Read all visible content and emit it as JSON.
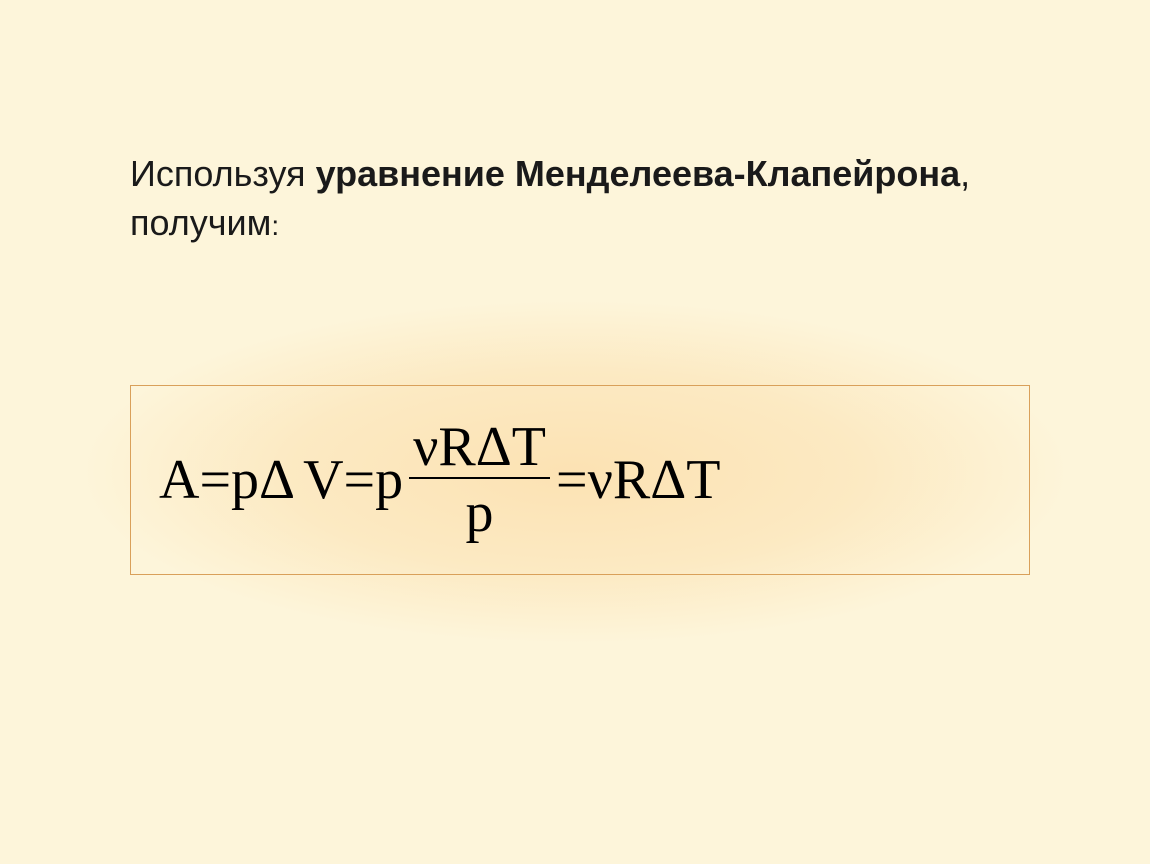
{
  "slide": {
    "background_color": "#fdf5da",
    "glow_color": "#fce2b3",
    "text": {
      "part1_regular": "Используя ",
      "part2_bold": "уравнение Менделеева-Клапейрона",
      "part3_regular": ", получим",
      "colon": ":",
      "text_color": "#1a1a1a",
      "fontsize": 36
    },
    "equation_box": {
      "border_color": "#d9a05a",
      "equation_fontsize": 56,
      "equation_color": "#000000"
    },
    "equation": {
      "lhs": "A",
      "eq": " = ",
      "term1_a": "pΔ",
      "term1_b": "V",
      "term2_coef": "p",
      "term2_numer": "νRΔT",
      "term2_denom": "p",
      "term3": "νRΔT"
    }
  }
}
